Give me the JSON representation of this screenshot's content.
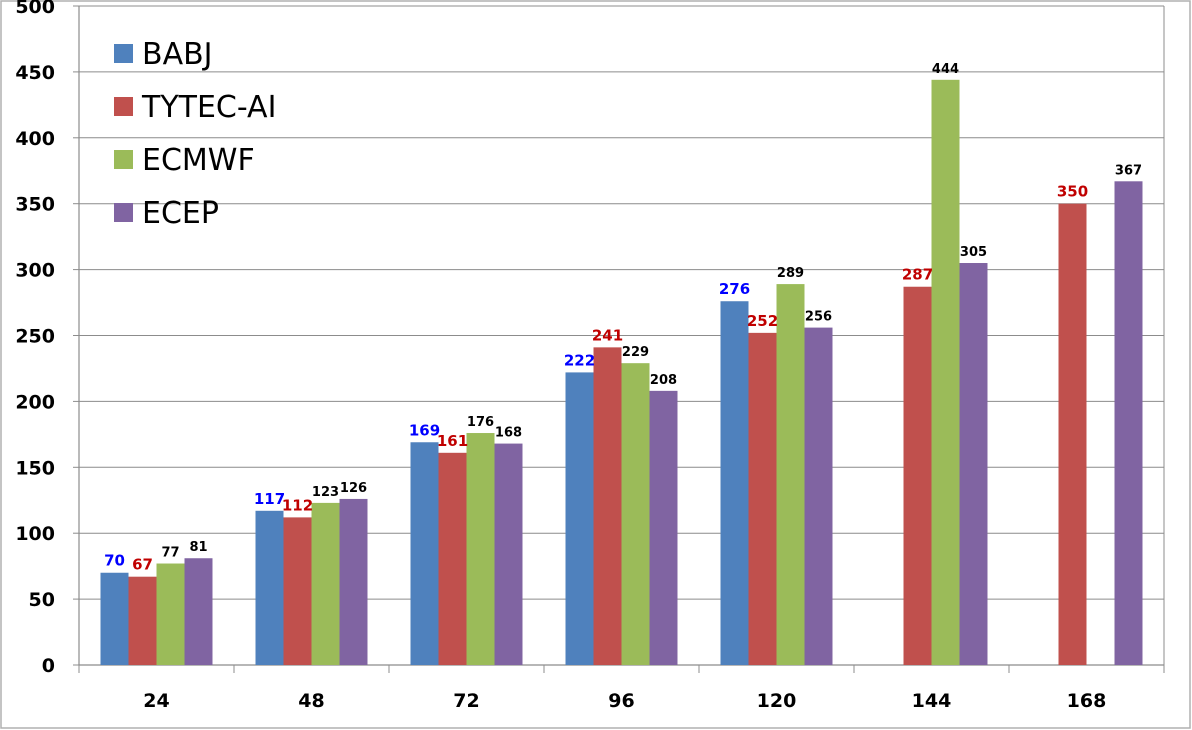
{
  "chart_data": {
    "type": "bar",
    "title": "",
    "xlabel": "",
    "ylabel": "",
    "categories": [
      "24",
      "48",
      "72",
      "96",
      "120",
      "144",
      "168"
    ],
    "ylim": [
      0,
      500
    ],
    "yticks": [
      0,
      50,
      100,
      150,
      200,
      250,
      300,
      350,
      400,
      450,
      500
    ],
    "grid": true,
    "legend_position": "top-left",
    "series": [
      {
        "name": "BABJ",
        "color": "#4F81BD",
        "label_color": "#0000FF",
        "values": [
          70,
          117,
          169,
          222,
          276,
          null,
          null
        ]
      },
      {
        "name": "TYTEC-AI",
        "color": "#C0504D",
        "label_color": "#C00000",
        "values": [
          67,
          112,
          161,
          241,
          252,
          287,
          350
        ]
      },
      {
        "name": "ECMWF",
        "color": "#9BBB59",
        "label_color": "#000000",
        "values": [
          77,
          123,
          176,
          229,
          289,
          444,
          null
        ]
      },
      {
        "name": "ECEP",
        "color": "#8064A2",
        "label_color": "#000000",
        "values": [
          81,
          126,
          168,
          208,
          256,
          305,
          367
        ]
      }
    ]
  }
}
